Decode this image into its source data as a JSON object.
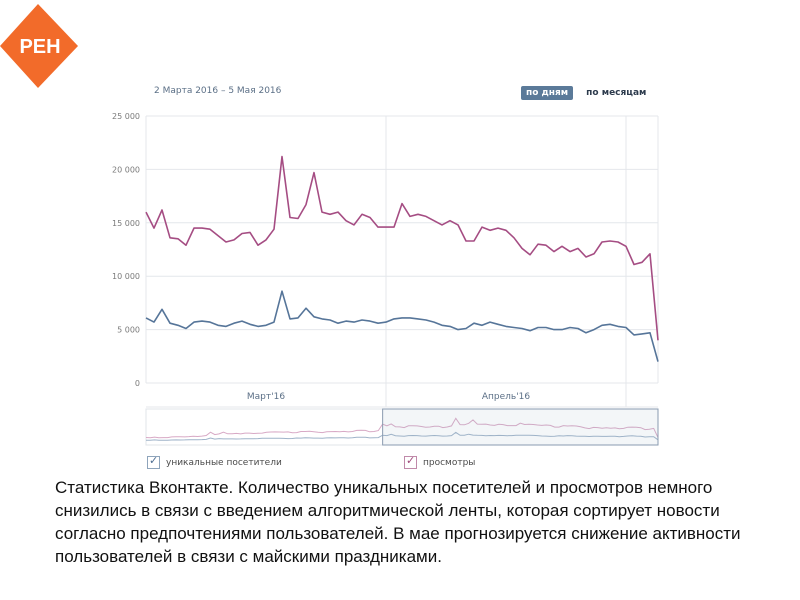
{
  "logo": {
    "text": "РЕН",
    "color": "#f26b2a"
  },
  "date_range": "2 Марта 2016 – 5 Мая 2016",
  "period_tabs": [
    {
      "label": "по дням",
      "active": true
    },
    {
      "label": "по месяцам",
      "active": false
    }
  ],
  "legend": {
    "unique_visitors": "уникальные посетители",
    "views": "просмотры"
  },
  "caption": "Статистика Вконтакте. Количество уникальных посетителей и просмотров немного снизились в связи с введением алгоритмической ленты, которая сортирует новости согласно предпочтениями пользователей. В мае прогнозируется снижение активности пользователей в связи с майскими праздниками.",
  "chart_data": {
    "type": "line",
    "y_ticks": [
      "0",
      "5 000",
      "10 000",
      "15 000",
      "20 000",
      "25 000"
    ],
    "ylim": [
      0,
      25000
    ],
    "month_labels": [
      "Март'16",
      "Апрель'16"
    ],
    "x": [
      "2016-03-02",
      "2016-03-03",
      "2016-03-04",
      "2016-03-05",
      "2016-03-06",
      "2016-03-07",
      "2016-03-08",
      "2016-03-09",
      "2016-03-10",
      "2016-03-11",
      "2016-03-12",
      "2016-03-13",
      "2016-03-14",
      "2016-03-15",
      "2016-03-16",
      "2016-03-17",
      "2016-03-18",
      "2016-03-19",
      "2016-03-20",
      "2016-03-21",
      "2016-03-22",
      "2016-03-23",
      "2016-03-24",
      "2016-03-25",
      "2016-03-26",
      "2016-03-27",
      "2016-03-28",
      "2016-03-29",
      "2016-03-30",
      "2016-03-31",
      "2016-04-01",
      "2016-04-02",
      "2016-04-03",
      "2016-04-04",
      "2016-04-05",
      "2016-04-06",
      "2016-04-07",
      "2016-04-08",
      "2016-04-09",
      "2016-04-10",
      "2016-04-11",
      "2016-04-12",
      "2016-04-13",
      "2016-04-14",
      "2016-04-15",
      "2016-04-16",
      "2016-04-17",
      "2016-04-18",
      "2016-04-19",
      "2016-04-20",
      "2016-04-21",
      "2016-04-22",
      "2016-04-23",
      "2016-04-24",
      "2016-04-25",
      "2016-04-26",
      "2016-04-27",
      "2016-04-28",
      "2016-04-29",
      "2016-04-30",
      "2016-05-01",
      "2016-05-02",
      "2016-05-03",
      "2016-05-04",
      "2016-05-05"
    ],
    "series": [
      {
        "name": "просмотры",
        "color": "#a54d83",
        "values": [
          16000,
          14500,
          16200,
          13600,
          13500,
          12900,
          14500,
          14500,
          14400,
          13800,
          13200,
          13400,
          14000,
          14100,
          12900,
          13400,
          14400,
          21200,
          15500,
          15400,
          16700,
          19700,
          16000,
          15800,
          16000,
          15200,
          14800,
          15800,
          15500,
          14600,
          14600,
          14600,
          16800,
          15600,
          15800,
          15600,
          15200,
          14800,
          15200,
          14800,
          13300,
          13300,
          14600,
          14300,
          14500,
          14300,
          13600,
          12600,
          12000,
          13000,
          12900,
          12300,
          12800,
          12300,
          12600,
          11800,
          12100,
          13200,
          13300,
          13200,
          12800,
          11100,
          11300,
          12100,
          4000
        ]
      },
      {
        "name": "уникальные посетители",
        "color": "#567599",
        "values": [
          6100,
          5700,
          6900,
          5600,
          5400,
          5100,
          5700,
          5800,
          5700,
          5400,
          5300,
          5600,
          5800,
          5500,
          5300,
          5400,
          5700,
          8600,
          6000,
          6100,
          7000,
          6200,
          6000,
          5900,
          5600,
          5800,
          5700,
          5900,
          5800,
          5600,
          5700,
          6000,
          6100,
          6100,
          6000,
          5900,
          5700,
          5400,
          5300,
          5000,
          5100,
          5600,
          5400,
          5700,
          5500,
          5300,
          5200,
          5100,
          4900,
          5200,
          5200,
          5000,
          5000,
          5200,
          5100,
          4700,
          5000,
          5400,
          5500,
          5300,
          5200,
          4500,
          4600,
          4700,
          2000
        ]
      }
    ]
  }
}
